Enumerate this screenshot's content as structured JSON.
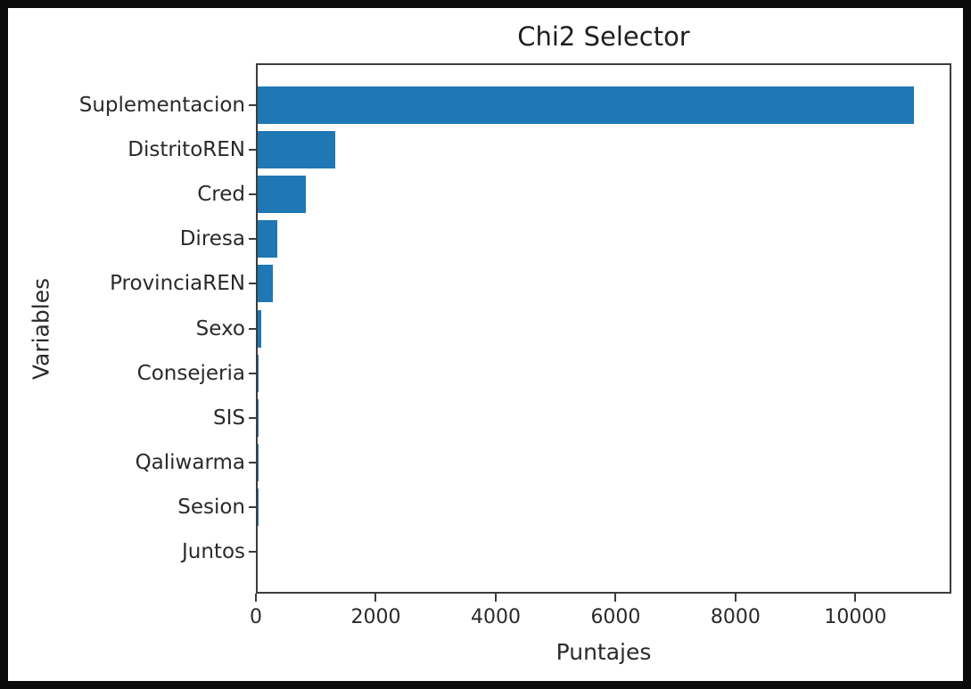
{
  "chart_data": {
    "type": "bar",
    "orientation": "horizontal",
    "title": "Chi2 Selector",
    "xlabel": "Puntajes",
    "ylabel": "Variables",
    "categories": [
      "Suplementacion",
      "DistritoREN",
      "Cred",
      "Diresa",
      "ProvinciaREN",
      "Sexo",
      "Consejeria",
      "SIS",
      "Qaliwarma",
      "Sesion",
      "Juntos"
    ],
    "values": [
      11000,
      1300,
      800,
      330,
      250,
      60,
      20,
      10,
      5,
      2,
      1
    ],
    "xlim": [
      0,
      11600
    ],
    "xticks": [
      0,
      2000,
      4000,
      6000,
      8000,
      10000
    ],
    "bar_color": "#1f77b4",
    "grid": false,
    "legend": null,
    "frame_color": "#0a0a0a",
    "spine_color": "#3c3c3c"
  }
}
